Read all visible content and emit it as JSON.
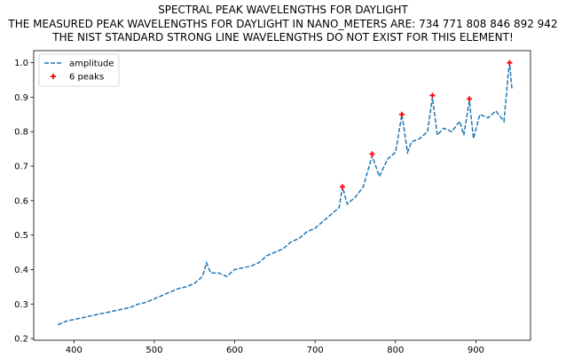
{
  "header": {
    "title_line1": "SPECTRAL PEAK WAVELENGTHS FOR DAYLIGHT",
    "title_line2": "THE MEASURED PEAK WAVELENGTHS FOR DAYLIGHT IN NANO_METERS ARE: 734 771 808 846 892 942",
    "title_line3": "THE NIST STANDARD STRONG LINE WAVELENGTHS DO NOT EXIST FOR THIS ELEMENT!"
  },
  "legend": {
    "items": [
      {
        "label": "amplitude",
        "marker": "dashed-line",
        "color": "#1f77b4"
      },
      {
        "label": "6 peaks",
        "marker": "plus",
        "color": "#ff0000"
      }
    ]
  },
  "chart_data": {
    "type": "line",
    "title": "SPECTRAL PEAK WAVELENGTHS FOR DAYLIGHT",
    "xlabel": "",
    "ylabel": "",
    "xlim": [
      350,
      968
    ],
    "ylim": [
      0.195,
      1.035
    ],
    "x_ticks": [
      400,
      500,
      600,
      700,
      800,
      900
    ],
    "y_ticks": [
      0.2,
      0.3,
      0.4,
      0.5,
      0.6,
      0.7,
      0.8,
      0.9,
      1.0
    ],
    "grid": false,
    "legend_position": "top-left",
    "series": [
      {
        "name": "amplitude",
        "style": "dashed",
        "color": "#1f77b4",
        "x": [
          380,
          390,
          400,
          410,
          420,
          430,
          440,
          450,
          460,
          470,
          480,
          490,
          500,
          510,
          520,
          530,
          540,
          550,
          560,
          565,
          570,
          580,
          590,
          600,
          610,
          620,
          630,
          640,
          650,
          660,
          670,
          680,
          690,
          700,
          710,
          720,
          730,
          734,
          740,
          750,
          760,
          771,
          780,
          790,
          800,
          808,
          815,
          820,
          830,
          840,
          846,
          852,
          860,
          870,
          880,
          885,
          892,
          897,
          905,
          915,
          925,
          935,
          940,
          942,
          945
        ],
        "y": [
          0.24,
          0.25,
          0.255,
          0.26,
          0.265,
          0.27,
          0.275,
          0.28,
          0.285,
          0.29,
          0.3,
          0.305,
          0.315,
          0.325,
          0.335,
          0.345,
          0.35,
          0.36,
          0.38,
          0.42,
          0.39,
          0.39,
          0.38,
          0.4,
          0.405,
          0.41,
          0.42,
          0.44,
          0.45,
          0.46,
          0.48,
          0.49,
          0.51,
          0.52,
          0.54,
          0.56,
          0.58,
          0.64,
          0.59,
          0.61,
          0.64,
          0.73,
          0.67,
          0.72,
          0.74,
          0.85,
          0.74,
          0.77,
          0.78,
          0.8,
          0.9,
          0.79,
          0.81,
          0.8,
          0.83,
          0.79,
          0.89,
          0.78,
          0.85,
          0.84,
          0.86,
          0.83,
          0.96,
          1.0,
          0.92
        ]
      },
      {
        "name": "6 peaks",
        "style": "marker",
        "color": "#ff0000",
        "x": [
          734,
          771,
          808,
          846,
          892,
          942
        ],
        "y": [
          0.64,
          0.735,
          0.85,
          0.905,
          0.895,
          1.0
        ]
      }
    ]
  }
}
